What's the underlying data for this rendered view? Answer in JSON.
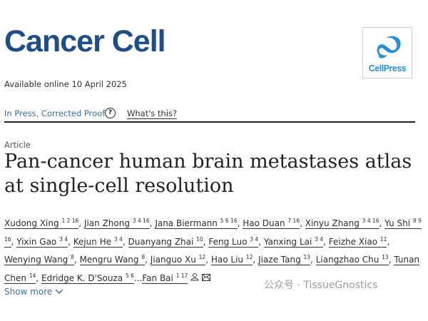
{
  "journal": {
    "name": "Cancer Cell",
    "available": "Available online 10 April 2025",
    "publisher_logo_text": "CellPress",
    "logo_color": "#2c8fd6"
  },
  "status": {
    "label": "In Press, Corrected Proof",
    "help_icon": "question-circle-icon",
    "whats_this": "What's this?"
  },
  "article": {
    "type": "Article",
    "title": "Pan-cancer human brain metastases atlas at single-cell resolution"
  },
  "authors": [
    {
      "name": "Xudong Xing",
      "aff": "1 2 16"
    },
    {
      "name": "Jian Zhong",
      "aff": "3 4 16"
    },
    {
      "name": "Jana Biermann",
      "aff": "5 6 16"
    },
    {
      "name": "Hao Duan",
      "aff": "7 16"
    },
    {
      "name": "Xinyu Zhang",
      "aff": "3 4 16"
    },
    {
      "name": "Yu Shi",
      "aff": "8 9 16"
    },
    {
      "name": "Yixin Gao",
      "aff": "3 4"
    },
    {
      "name": "Kejun He",
      "aff": "3 4"
    },
    {
      "name": "Duanyang Zhai",
      "aff": "10"
    },
    {
      "name": "Feng Luo",
      "aff": "3 4"
    },
    {
      "name": "Yanxing Lai",
      "aff": "3 4"
    },
    {
      "name": "Feizhe Xiao",
      "aff": "11"
    },
    {
      "name": "Wenying Wang",
      "aff": "8"
    },
    {
      "name": "Mengru Wang",
      "aff": "8"
    },
    {
      "name": "Jianguo Xu",
      "aff": "12"
    },
    {
      "name": "Hao Liu",
      "aff": "12"
    },
    {
      "name": "Jiaze Tang",
      "aff": "13"
    },
    {
      "name": "Liangzhao Chu",
      "aff": "13"
    },
    {
      "name": "Tunan Chen",
      "aff": "14"
    },
    {
      "name": "Edridge K. D'Souza",
      "aff": "5 6"
    },
    {
      "name": "Fan Bai",
      "aff": "1 17"
    }
  ],
  "author_icons": [
    "person-icon",
    "envelope-icon"
  ],
  "ellipsis": "...",
  "show_more": "Show more",
  "watermark": "公众号 · TissueGnostics"
}
